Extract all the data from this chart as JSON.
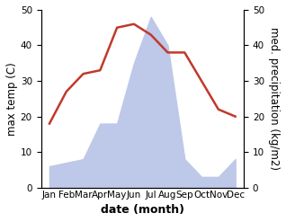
{
  "months": [
    "Jan",
    "Feb",
    "Mar",
    "Apr",
    "May",
    "Jun",
    "Jul",
    "Aug",
    "Sep",
    "Oct",
    "Nov",
    "Dec"
  ],
  "x": [
    0,
    1,
    2,
    3,
    4,
    5,
    6,
    7,
    8,
    9,
    10,
    11
  ],
  "temp": [
    18,
    27,
    32,
    33,
    45,
    46,
    43,
    38,
    38,
    30,
    22,
    20
  ],
  "precip": [
    6,
    7,
    8,
    18,
    18,
    35,
    48,
    40,
    8,
    3,
    3,
    8
  ],
  "temp_color": "#c0392b",
  "precip_fill_color": "#bec8e8",
  "ylabel_left": "max temp (C)",
  "ylabel_right": "med. precipitation (kg/m2)",
  "xlabel": "date (month)",
  "ylim_left": [
    0,
    50
  ],
  "ylim_right": [
    0,
    50
  ],
  "tick_fontsize": 7.5,
  "label_fontsize": 8.5,
  "xlabel_fontsize": 9,
  "background_color": "#ffffff"
}
